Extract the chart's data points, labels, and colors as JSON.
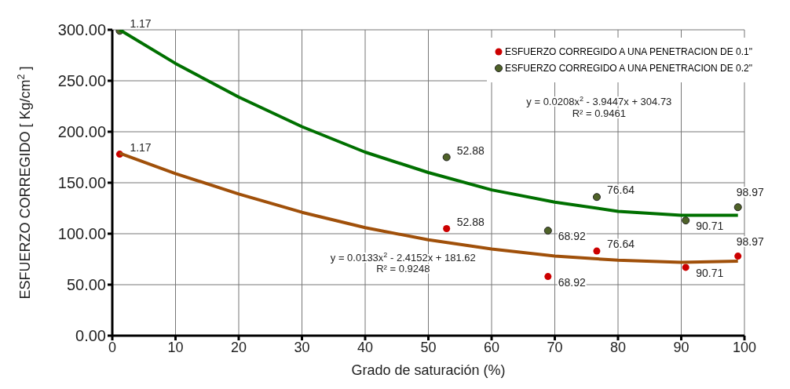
{
  "chart_data": {
    "type": "scatter",
    "xlabel": "Grado de saturación (%)",
    "ylabel": "ESFUERZO CORREGIDO   [ Kg/cm$^{2}$ ]",
    "xlim": [
      0,
      100
    ],
    "xticks": [
      0,
      10,
      20,
      30,
      40,
      50,
      60,
      70,
      80,
      90,
      100
    ],
    "ylim": [
      0,
      300
    ],
    "yticks": [
      {
        "value": 0,
        "label": "0.00"
      },
      {
        "value": 50,
        "label": "50.00"
      },
      {
        "value": 100,
        "label": "100.00"
      },
      {
        "value": 150,
        "label": "150.00"
      },
      {
        "value": 200,
        "label": "200.00"
      },
      {
        "value": 250,
        "label": "250.00"
      },
      {
        "value": 300,
        "label": "300.00"
      }
    ],
    "grid": true,
    "legend": "top right",
    "marker": "circle",
    "series": [
      {
        "name": "ESFUERZO CORREGIDO A UNA PENETRACION DE 0.1\"",
        "color": "#cc0000",
        "x": [
          1.17,
          52.88,
          68.92,
          76.64,
          90.71,
          98.97
        ],
        "values": [
          178,
          105,
          58,
          83,
          67,
          78
        ]
      },
      {
        "name": "ESFUERZO CORREGIDO A UNA PENETRACION DE 0.2\"",
        "color": "#4f6228",
        "x": [
          1.17,
          52.88,
          68.92,
          76.64,
          90.71,
          98.97
        ],
        "values": [
          299,
          175,
          103,
          136,
          113,
          126
        ]
      },
      {
        "type": "line",
        "marker": "none",
        "color": "#a0500a",
        "x": [
          1.17,
          10,
          20,
          30,
          40,
          50,
          60,
          70,
          80,
          90,
          98.97
        ],
        "values": [
          179,
          159,
          139,
          121,
          106,
          94,
          85,
          78,
          74,
          72,
          73
        ]
      },
      {
        "type": "line",
        "marker": "none",
        "color": "#007000",
        "x": [
          1.17,
          10,
          20,
          30,
          40,
          50,
          60,
          70,
          80,
          90,
          98.97
        ],
        "values": [
          300,
          267,
          234,
          205,
          180,
          160,
          143,
          131,
          122,
          118,
          118
        ]
      }
    ],
    "annotations": [
      {
        "text": "1.17",
        "x": 1.17,
        "y": 178
      },
      {
        "text": "52.88",
        "x": 52.88,
        "y": 105
      },
      {
        "text": "68.92",
        "x": 68.92,
        "y": 58
      },
      {
        "text": "76.64",
        "x": 76.64,
        "y": 83
      },
      {
        "text": "90.71",
        "x": 90.71,
        "y": 67
      },
      {
        "text": "98.97",
        "x": 98.97,
        "y": 78
      },
      {
        "text": "1.17",
        "x": 1.17,
        "y": 299
      },
      {
        "text": "52.88",
        "x": 52.88,
        "y": 175
      },
      {
        "text": "68.92",
        "x": 68.92,
        "y": 103
      },
      {
        "text": "76.64",
        "x": 76.64,
        "y": 136
      },
      {
        "text": "90.71",
        "x": 90.71,
        "y": 113
      },
      {
        "text": "98.97",
        "x": 98.97,
        "y": 126
      },
      "y = 0.0133x$^{2}$ - 2.4152x + 181.62",
      "R² = 0.9248",
      "y = 0.0208x$^{2}$ - 3.9447x + 304.73",
      "R² = 0.9461"
    ]
  }
}
